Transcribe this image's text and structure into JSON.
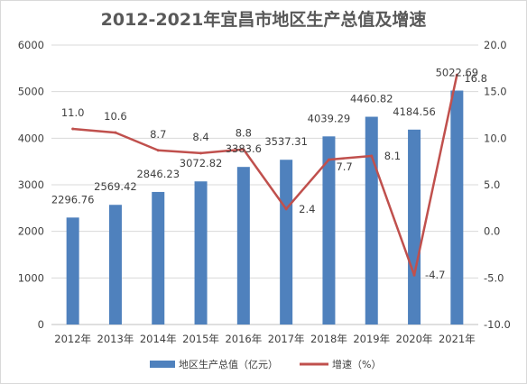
{
  "chart_data": {
    "type": "bar+line",
    "title": "2012-2021年宜昌市地区生产总值及增速",
    "categories": [
      "2012年",
      "2013年",
      "2014年",
      "2015年",
      "2016年",
      "2017年",
      "2018年",
      "2019年",
      "2020年",
      "2021年"
    ],
    "series": [
      {
        "name": "地区生产总值（亿元）",
        "type": "bar",
        "axis": "left",
        "values": [
          2296.76,
          2569.42,
          2846.23,
          3072.82,
          3383.6,
          3537.31,
          4039.29,
          4460.82,
          4184.56,
          5022.69
        ],
        "labels": [
          "2296.76",
          "2569.42",
          "2846.23",
          "3072.82",
          "3383.6",
          "3537.31",
          "4039.29",
          "4460.82",
          "4184.56",
          "5022.69"
        ]
      },
      {
        "name": "增速（%）",
        "type": "line",
        "axis": "right",
        "values": [
          11.0,
          10.6,
          8.7,
          8.4,
          8.8,
          2.4,
          7.7,
          8.1,
          -4.7,
          16.8
        ],
        "labels": [
          "11.0",
          "10.6",
          "8.7",
          "8.4",
          "8.8",
          "2.4",
          "7.7",
          "8.1",
          "-4.7",
          "16.8"
        ]
      }
    ],
    "y_left": {
      "min": 0,
      "max": 6000,
      "ticks": [
        "0",
        "1000",
        "2000",
        "3000",
        "4000",
        "5000",
        "6000"
      ]
    },
    "y_right": {
      "min": -10,
      "max": 20,
      "ticks": [
        "-10.0",
        "-5.0",
        "0.0",
        "5.0",
        "10.0",
        "15.0",
        "20.0"
      ]
    },
    "grid": true,
    "legend_position": "bottom",
    "colors": {
      "bar": "#4f81bd",
      "line": "#c0504d",
      "grid": "#d9d9d9",
      "text": "#404040",
      "title": "#595959"
    }
  }
}
